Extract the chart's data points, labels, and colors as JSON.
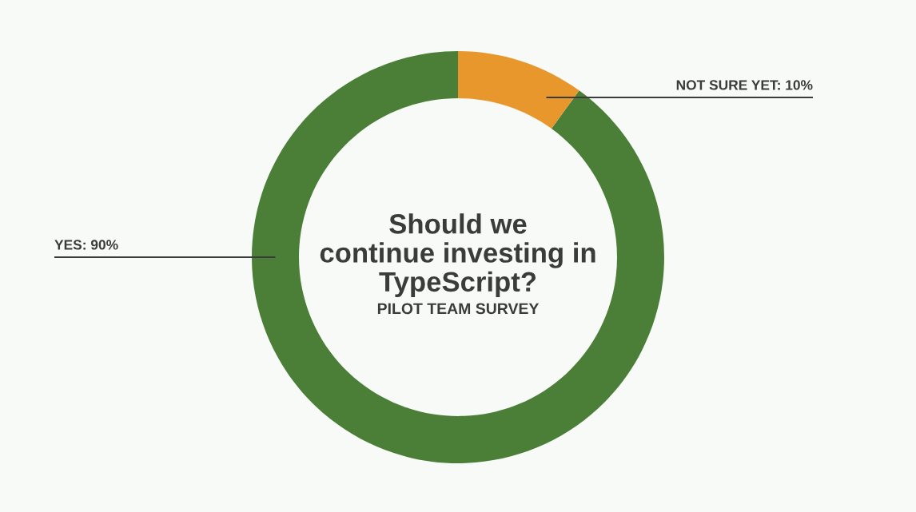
{
  "chart_data": {
    "type": "donut",
    "title": "Should we\ncontinue investing in\nTypeScript?",
    "subtitle": "PILOT TEAM SURVEY",
    "categories": [
      "YES",
      "NOT SURE YET"
    ],
    "values": [
      90,
      10
    ],
    "colors": [
      "#4b7f37",
      "#e8972c"
    ],
    "value_labels": [
      "90%",
      "10%"
    ]
  }
}
